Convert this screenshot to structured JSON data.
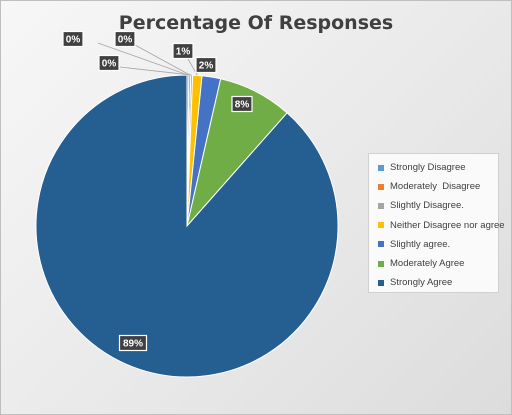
{
  "chart_data": {
    "type": "pie",
    "title": "Percentage Of Responses",
    "categories": [
      "Strongly Disagree",
      "Moderately  Disagree",
      "Slightly Disagree.",
      "Neither Disagree nor agree",
      "Slightly agree.",
      "Moderately Agree",
      "Strongly Agree"
    ],
    "values": [
      0.2,
      0.2,
      0.2,
      1,
      2,
      8,
      89
    ],
    "data_labels": [
      "0%",
      "0%",
      "0%",
      "1%",
      "2%",
      "8%",
      "89%"
    ],
    "colors": [
      "#5b9bd5",
      "#ed7d31",
      "#a5a5a5",
      "#ffc000",
      "#4472c4",
      "#70ad47",
      "#255e91"
    ],
    "legend_position": "right"
  }
}
